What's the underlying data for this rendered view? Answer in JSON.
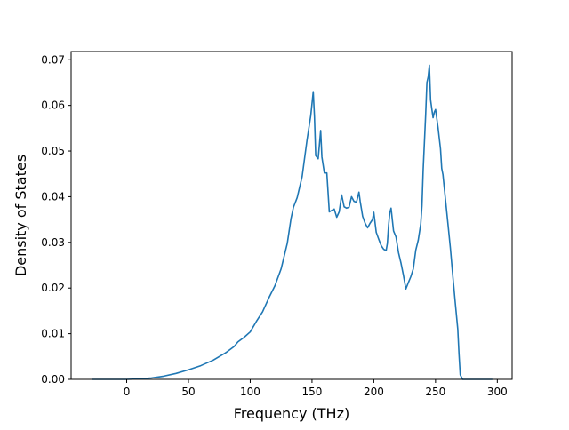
{
  "chart_data": {
    "type": "line",
    "title": "",
    "xlabel": "Frequency (THz)",
    "ylabel": "Density of States",
    "xlim": [
      -45,
      312
    ],
    "ylim": [
      0,
      0.0718
    ],
    "xticks": [
      0,
      50,
      100,
      150,
      200,
      250,
      300
    ],
    "yticks": [
      0.0,
      0.01,
      0.02,
      0.03,
      0.04,
      0.05,
      0.06,
      0.07
    ],
    "xtick_labels": [
      "0",
      "50",
      "100",
      "150",
      "200",
      "250",
      "300"
    ],
    "ytick_labels": [
      "0.00",
      "0.01",
      "0.02",
      "0.03",
      "0.04",
      "0.05",
      "0.06",
      "0.07"
    ],
    "grid": false,
    "legend": false,
    "series": [
      {
        "color": "#1f77b4",
        "x": [
          -28,
          0,
          10,
          20,
          30,
          40,
          50,
          60,
          70,
          80,
          87,
          90,
          95,
          100,
          105,
          110,
          115,
          120,
          125,
          130,
          133,
          135,
          138,
          142,
          146,
          149,
          151,
          152,
          153,
          155,
          157,
          158,
          160,
          162,
          164,
          166,
          168,
          170,
          172,
          174,
          176,
          178,
          180,
          182,
          184,
          186,
          188,
          189,
          191,
          193,
          195,
          197,
          199,
          200,
          202,
          204,
          206,
          208,
          210,
          211,
          212,
          213,
          214,
          216,
          218,
          220,
          222,
          224,
          226,
          228,
          230,
          232,
          234,
          236,
          238,
          239,
          240,
          242,
          243,
          244,
          245,
          246,
          247,
          248,
          249,
          250,
          252,
          254,
          255,
          256,
          258,
          260,
          262,
          264,
          266,
          268,
          269,
          270,
          272,
          280,
          290,
          296
        ],
        "y": [
          0,
          0,
          0.0001,
          0.0003,
          0.0007,
          0.0013,
          0.0021,
          0.003,
          0.0042,
          0.0058,
          0.0072,
          0.0082,
          0.0092,
          0.0104,
          0.0127,
          0.0148,
          0.0178,
          0.0205,
          0.0242,
          0.0298,
          0.0352,
          0.0377,
          0.0398,
          0.0444,
          0.0525,
          0.0578,
          0.063,
          0.0575,
          0.049,
          0.0483,
          0.0545,
          0.0487,
          0.0452,
          0.0452,
          0.0367,
          0.037,
          0.0373,
          0.0355,
          0.0367,
          0.0404,
          0.0378,
          0.0375,
          0.0377,
          0.04,
          0.039,
          0.0388,
          0.041,
          0.039,
          0.0357,
          0.0342,
          0.0332,
          0.0342,
          0.035,
          0.0366,
          0.0322,
          0.0307,
          0.0293,
          0.0285,
          0.0282,
          0.0298,
          0.0338,
          0.0365,
          0.0375,
          0.0325,
          0.0312,
          0.0278,
          0.0255,
          0.0228,
          0.0198,
          0.0212,
          0.0225,
          0.0242,
          0.0283,
          0.0305,
          0.034,
          0.038,
          0.046,
          0.058,
          0.065,
          0.0662,
          0.0688,
          0.0612,
          0.0592,
          0.0573,
          0.0585,
          0.0591,
          0.0552,
          0.0505,
          0.0462,
          0.0448,
          0.0395,
          0.0342,
          0.0288,
          0.0226,
          0.0167,
          0.011,
          0.0055,
          0.001,
          0,
          0,
          0,
          0
        ]
      }
    ]
  }
}
